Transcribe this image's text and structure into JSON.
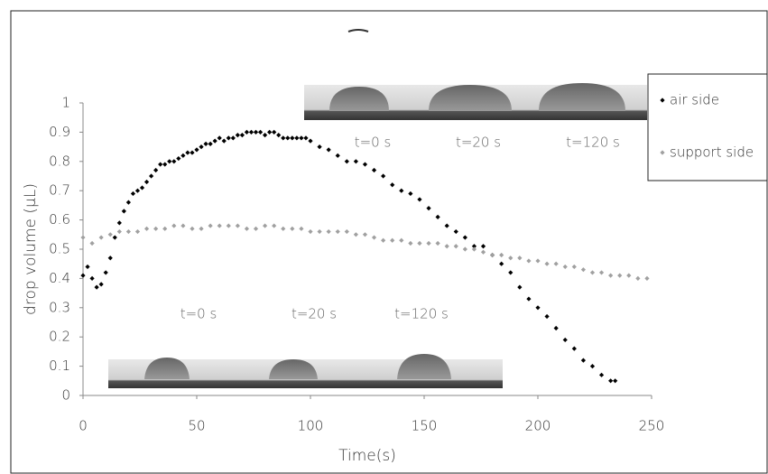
{
  "chart_data": {
    "type": "scatter",
    "x_label": "Time(s)",
    "y_label": "drop volume (μL)",
    "xlim": [
      0,
      250
    ],
    "xticks": [
      0,
      50,
      100,
      150,
      200,
      250
    ],
    "ylim": [
      0,
      1
    ],
    "yticks": [
      0,
      0.1,
      0.2,
      0.3,
      0.4,
      0.5,
      0.6,
      0.7,
      0.8,
      0.9,
      1
    ],
    "legend": "right",
    "annotations": [
      "t=0 s",
      "t=20 s",
      "t=120 s",
      "t=0 s",
      "t=20 s",
      "t=120 s"
    ],
    "series": [
      {
        "name": "air side",
        "color": "#000000",
        "x": [
          0,
          2,
          4,
          6,
          8,
          10,
          12,
          14,
          16,
          18,
          20,
          22,
          24,
          26,
          28,
          30,
          32,
          34,
          36,
          38,
          40,
          42,
          44,
          46,
          48,
          50,
          52,
          54,
          56,
          58,
          60,
          62,
          64,
          66,
          68,
          70,
          72,
          74,
          76,
          78,
          80,
          82,
          84,
          86,
          88,
          90,
          92,
          94,
          96,
          98,
          100,
          104,
          108,
          112,
          116,
          120,
          124,
          128,
          132,
          136,
          140,
          144,
          148,
          152,
          156,
          160,
          164,
          168,
          172,
          176,
          180,
          184,
          188,
          192,
          196,
          200,
          204,
          208,
          212,
          216,
          220,
          224,
          228,
          232,
          234
        ],
        "values": [
          0.41,
          0.44,
          0.4,
          0.37,
          0.38,
          0.42,
          0.47,
          0.54,
          0.59,
          0.63,
          0.66,
          0.69,
          0.7,
          0.71,
          0.73,
          0.75,
          0.77,
          0.79,
          0.79,
          0.8,
          0.8,
          0.81,
          0.82,
          0.83,
          0.83,
          0.84,
          0.85,
          0.86,
          0.86,
          0.87,
          0.88,
          0.87,
          0.88,
          0.88,
          0.89,
          0.89,
          0.9,
          0.9,
          0.9,
          0.9,
          0.89,
          0.9,
          0.9,
          0.89,
          0.88,
          0.88,
          0.88,
          0.88,
          0.88,
          0.88,
          0.87,
          0.85,
          0.84,
          0.82,
          0.8,
          0.8,
          0.79,
          0.77,
          0.75,
          0.72,
          0.7,
          0.69,
          0.67,
          0.64,
          0.61,
          0.58,
          0.56,
          0.54,
          0.51,
          0.51,
          0.48,
          0.45,
          0.42,
          0.37,
          0.33,
          0.3,
          0.27,
          0.23,
          0.19,
          0.16,
          0.12,
          0.1,
          0.07,
          0.05,
          0.05
        ]
      },
      {
        "name": "support side",
        "color": "#a0a0a0",
        "x": [
          0,
          4,
          8,
          12,
          16,
          20,
          24,
          28,
          32,
          36,
          40,
          44,
          48,
          52,
          56,
          60,
          64,
          68,
          72,
          76,
          80,
          84,
          88,
          92,
          96,
          100,
          104,
          108,
          112,
          116,
          120,
          124,
          128,
          132,
          136,
          140,
          144,
          148,
          152,
          156,
          160,
          164,
          168,
          172,
          176,
          180,
          184,
          188,
          192,
          196,
          200,
          204,
          208,
          212,
          216,
          220,
          224,
          228,
          232,
          236,
          240,
          244,
          248
        ],
        "values": [
          0.54,
          0.52,
          0.54,
          0.55,
          0.56,
          0.56,
          0.56,
          0.57,
          0.57,
          0.57,
          0.58,
          0.58,
          0.57,
          0.57,
          0.58,
          0.58,
          0.58,
          0.58,
          0.57,
          0.57,
          0.58,
          0.58,
          0.57,
          0.57,
          0.57,
          0.56,
          0.56,
          0.56,
          0.56,
          0.56,
          0.55,
          0.55,
          0.54,
          0.53,
          0.53,
          0.53,
          0.52,
          0.52,
          0.52,
          0.52,
          0.51,
          0.51,
          0.5,
          0.5,
          0.49,
          0.48,
          0.48,
          0.47,
          0.47,
          0.46,
          0.46,
          0.45,
          0.45,
          0.44,
          0.44,
          0.43,
          0.42,
          0.42,
          0.41,
          0.41,
          0.41,
          0.4,
          0.4
        ]
      }
    ]
  }
}
